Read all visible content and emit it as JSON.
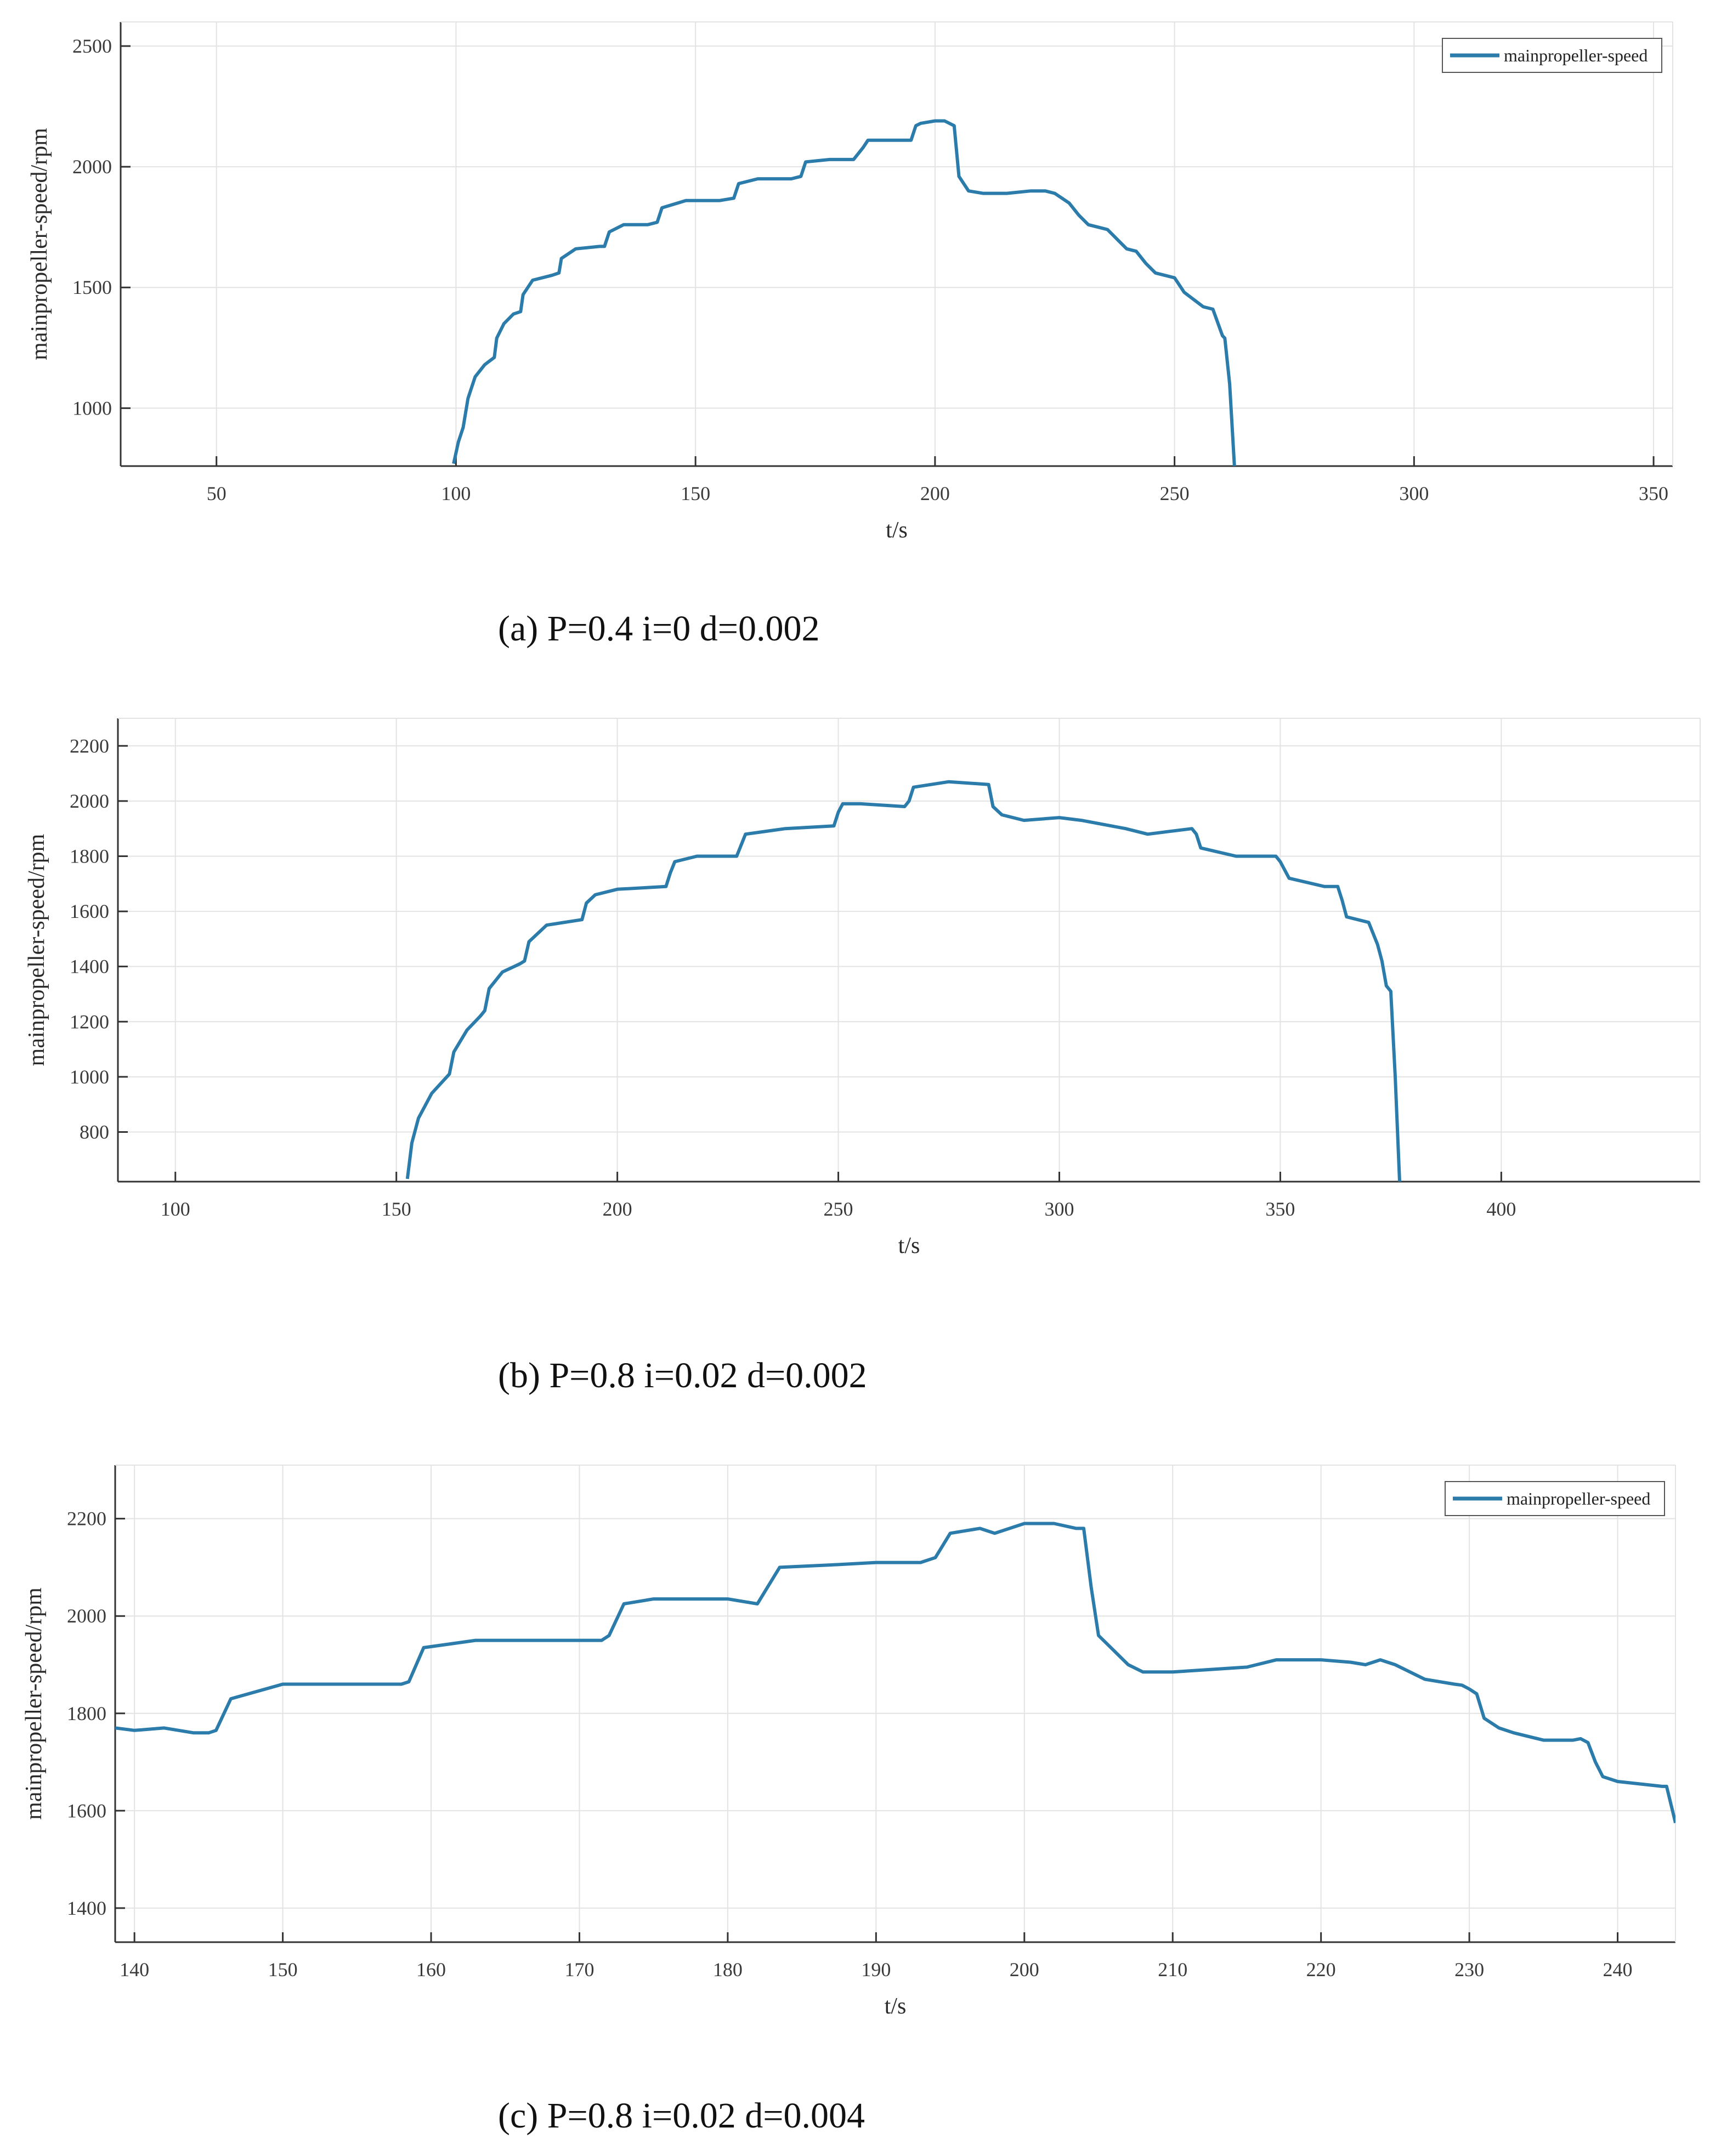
{
  "series_color": "#2b7bab",
  "chart_data": [
    {
      "type": "line",
      "panel": "a",
      "caption": "(a) P=0.4 i=0 d=0.002",
      "xlabel": "t/s",
      "ylabel": "mainpropeller-speed/rpm",
      "xlim": [
        30,
        354
      ],
      "ylim": [
        760,
        2600
      ],
      "xticks": [
        50,
        100,
        150,
        200,
        250,
        300,
        350
      ],
      "yticks": [
        1000,
        1500,
        2000,
        2500
      ],
      "grid": true,
      "legend": {
        "position": "top-right",
        "entries": [
          "mainpropeller-speed"
        ]
      },
      "series": [
        {
          "name": "mainpropeller-speed",
          "x": [
            99.5,
            100.5,
            101.5,
            102.5,
            104,
            106,
            108,
            108.5,
            110,
            112,
            113.5,
            114,
            116,
            120,
            121.5,
            122,
            125,
            130,
            131,
            132,
            135,
            140,
            142,
            143,
            148,
            155,
            158,
            159,
            163,
            170,
            172,
            173,
            178,
            183,
            185,
            186,
            190,
            195,
            196,
            197,
            200,
            202,
            204,
            205,
            207,
            210,
            215,
            220,
            223,
            225,
            228,
            230,
            232,
            234,
            236,
            238,
            240,
            242,
            244,
            246,
            248,
            250,
            252,
            254,
            256,
            258,
            260,
            260.5,
            261.5,
            262.5
          ],
          "y": [
            770,
            860,
            920,
            1040,
            1130,
            1180,
            1210,
            1290,
            1350,
            1390,
            1400,
            1470,
            1530,
            1550,
            1560,
            1620,
            1660,
            1670,
            1670,
            1730,
            1760,
            1760,
            1770,
            1830,
            1860,
            1860,
            1870,
            1930,
            1950,
            1950,
            1960,
            2020,
            2030,
            2030,
            2080,
            2110,
            2110,
            2110,
            2170,
            2180,
            2190,
            2190,
            2170,
            1960,
            1900,
            1890,
            1890,
            1900,
            1900,
            1890,
            1850,
            1800,
            1760,
            1750,
            1740,
            1700,
            1660,
            1650,
            1600,
            1560,
            1550,
            1540,
            1480,
            1450,
            1420,
            1410,
            1300,
            1290,
            1100,
            760
          ]
        }
      ]
    },
    {
      "type": "line",
      "panel": "b",
      "caption": "(b) P=0.8 i=0.02 d=0.002",
      "xlabel": "t/s",
      "ylabel": "mainpropeller-speed/rpm",
      "xlim": [
        87,
        445
      ],
      "ylim": [
        620,
        2300
      ],
      "xticks": [
        100,
        150,
        200,
        250,
        300,
        350,
        400
      ],
      "yticks": [
        800,
        1000,
        1200,
        1400,
        1600,
        1800,
        2000,
        2200
      ],
      "grid": true,
      "series": [
        {
          "name": "",
          "x": [
            152.5,
            153.5,
            155,
            158,
            162,
            163,
            166,
            169,
            170,
            171,
            174,
            178,
            179,
            180,
            184,
            192,
            193,
            195,
            200,
            211,
            212,
            213,
            218,
            227,
            228,
            229,
            238,
            249,
            250,
            251,
            255,
            265,
            266,
            267,
            275,
            284,
            285,
            287,
            292,
            300,
            305,
            315,
            320,
            325,
            330,
            331,
            332,
            340,
            349,
            350,
            352,
            360,
            363,
            364,
            365,
            370,
            372,
            373,
            374,
            375,
            376,
            377
          ],
          "y": [
            630,
            760,
            850,
            940,
            1010,
            1090,
            1170,
            1220,
            1240,
            1320,
            1380,
            1410,
            1420,
            1490,
            1550,
            1570,
            1630,
            1660,
            1680,
            1690,
            1740,
            1780,
            1800,
            1800,
            1840,
            1880,
            1900,
            1910,
            1960,
            1990,
            1990,
            1980,
            2000,
            2050,
            2070,
            2060,
            1980,
            1950,
            1930,
            1940,
            1930,
            1900,
            1880,
            1890,
            1900,
            1880,
            1830,
            1800,
            1800,
            1780,
            1720,
            1690,
            1690,
            1640,
            1580,
            1560,
            1480,
            1420,
            1330,
            1310,
            1000,
            620
          ]
        }
      ]
    },
    {
      "type": "line",
      "panel": "c",
      "caption": "(c) P=0.8 i=0.02 d=0.004",
      "xlabel": "t/s",
      "ylabel": "mainpropeller-speed/rpm",
      "xlim": [
        138.7,
        243.9
      ],
      "ylim": [
        1330,
        2310
      ],
      "xticks": [
        140,
        150,
        160,
        170,
        180,
        190,
        200,
        210,
        220,
        230,
        240
      ],
      "yticks": [
        1400,
        1600,
        1800,
        2000,
        2200
      ],
      "grid": true,
      "legend": {
        "position": "top-right",
        "entries": [
          "mainpropeller-speed"
        ]
      },
      "series": [
        {
          "name": "mainpropeller-speed",
          "x": [
            138.7,
            140,
            142,
            144,
            145,
            145.5,
            146.5,
            150,
            155,
            158,
            158.5,
            159.5,
            163,
            166,
            170,
            171.5,
            172,
            173,
            175,
            180,
            182,
            182.5,
            183.5,
            187,
            190,
            193,
            194,
            195,
            197,
            198,
            200,
            202,
            203.5,
            204,
            204.5,
            205,
            206,
            207,
            208,
            210,
            215,
            217,
            220,
            222,
            223,
            224,
            225,
            227,
            229,
            229.5,
            230,
            230.5,
            231,
            232,
            233,
            235,
            237,
            237.5,
            238,
            238.5,
            239,
            240,
            243,
            243.3,
            243.9
          ],
          "y": [
            1770,
            1765,
            1770,
            1760,
            1760,
            1765,
            1830,
            1860,
            1860,
            1860,
            1865,
            1935,
            1950,
            1950,
            1950,
            1950,
            1960,
            2025,
            2035,
            2035,
            2025,
            2050,
            2100,
            2105,
            2110,
            2110,
            2120,
            2170,
            2180,
            2170,
            2190,
            2190,
            2180,
            2180,
            2060,
            1960,
            1930,
            1900,
            1885,
            1885,
            1895,
            1910,
            1910,
            1905,
            1900,
            1910,
            1900,
            1870,
            1860,
            1858,
            1850,
            1840,
            1790,
            1770,
            1760,
            1745,
            1745,
            1748,
            1740,
            1700,
            1670,
            1660,
            1650,
            1650,
            1575
          ]
        }
      ]
    }
  ]
}
